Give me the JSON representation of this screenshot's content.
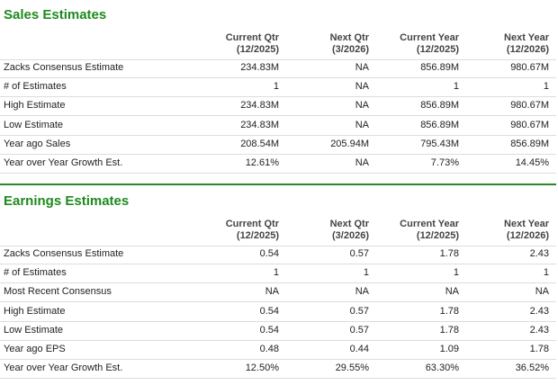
{
  "sections": [
    {
      "title": "Sales Estimates",
      "columns": [
        {
          "label": "Current Qtr",
          "period": "(12/2025)"
        },
        {
          "label": "Next Qtr",
          "period": "(3/2026)"
        },
        {
          "label": "Current Year",
          "period": "(12/2025)"
        },
        {
          "label": "Next Year",
          "period": "(12/2026)"
        }
      ],
      "rows": [
        {
          "label": "Zacks Consensus Estimate",
          "values": [
            "234.83M",
            "NA",
            "856.89M",
            "980.67M"
          ]
        },
        {
          "label": "# of Estimates",
          "values": [
            "1",
            "NA",
            "1",
            "1"
          ]
        },
        {
          "label": "High Estimate",
          "values": [
            "234.83M",
            "NA",
            "856.89M",
            "980.67M"
          ]
        },
        {
          "label": "Low Estimate",
          "values": [
            "234.83M",
            "NA",
            "856.89M",
            "980.67M"
          ]
        },
        {
          "label": "Year ago Sales",
          "values": [
            "208.54M",
            "205.94M",
            "795.43M",
            "856.89M"
          ]
        },
        {
          "label": "Year over Year Growth Est.",
          "values": [
            "12.61%",
            "NA",
            "7.73%",
            "14.45%"
          ]
        }
      ]
    },
    {
      "title": "Earnings Estimates",
      "columns": [
        {
          "label": "Current Qtr",
          "period": "(12/2025)"
        },
        {
          "label": "Next Qtr",
          "period": "(3/2026)"
        },
        {
          "label": "Current Year",
          "period": "(12/2025)"
        },
        {
          "label": "Next Year",
          "period": "(12/2026)"
        }
      ],
      "rows": [
        {
          "label": "Zacks Consensus Estimate",
          "values": [
            "0.54",
            "0.57",
            "1.78",
            "2.43"
          ]
        },
        {
          "label": "# of Estimates",
          "values": [
            "1",
            "1",
            "1",
            "1"
          ]
        },
        {
          "label": "Most Recent Consensus",
          "values": [
            "NA",
            "NA",
            "NA",
            "NA"
          ]
        },
        {
          "label": "High Estimate",
          "values": [
            "0.54",
            "0.57",
            "1.78",
            "2.43"
          ]
        },
        {
          "label": "Low Estimate",
          "values": [
            "0.54",
            "0.57",
            "1.78",
            "2.43"
          ]
        },
        {
          "label": "Year ago EPS",
          "values": [
            "0.48",
            "0.44",
            "1.09",
            "1.78"
          ]
        },
        {
          "label": "Year over Year Growth Est.",
          "values": [
            "12.50%",
            "29.55%",
            "63.30%",
            "36.52%"
          ]
        }
      ]
    }
  ]
}
